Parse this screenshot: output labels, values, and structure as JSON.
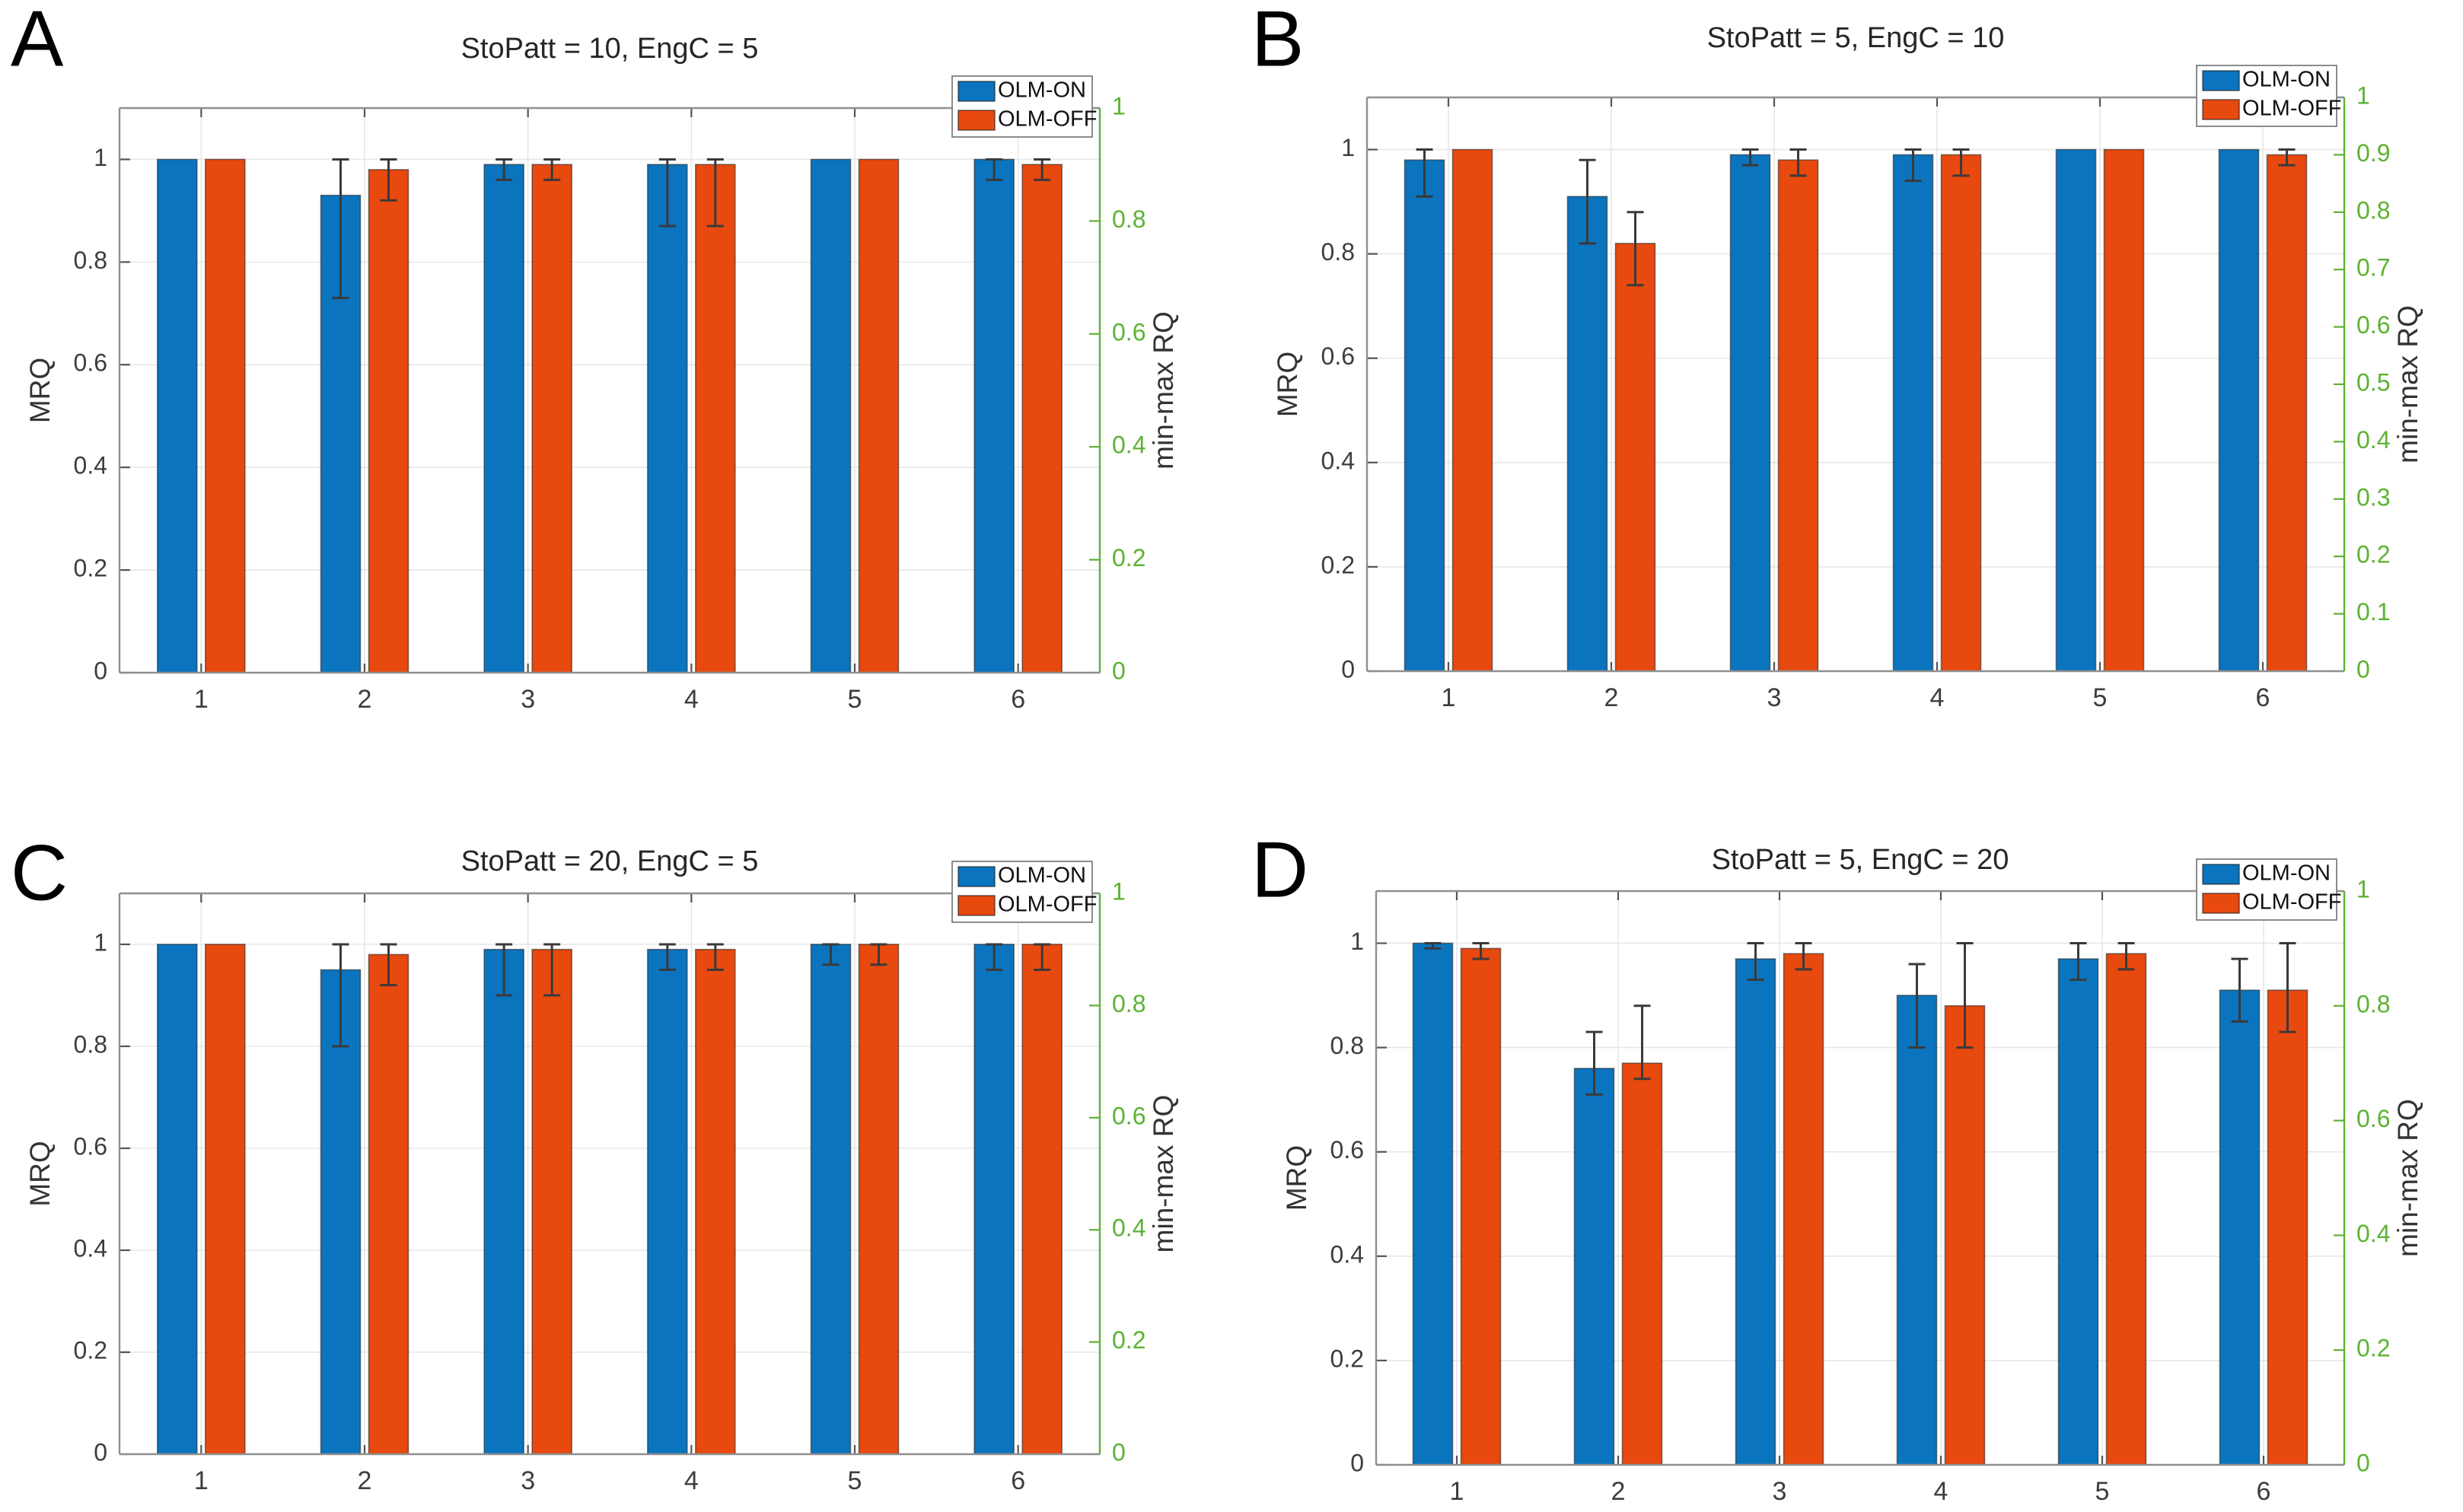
{
  "figure": {
    "background": "#ffffff",
    "colors": {
      "olm_on": "#0b74be",
      "olm_off": "#e8490e",
      "right_axis_green": "#5cb232",
      "grid": "#e7e7e7",
      "spine": "#8f8f8f",
      "error_bar": "#3a3a3a",
      "tick_mark": "#555555"
    },
    "legend": {
      "items": [
        {
          "label": "OLM-ON",
          "color_key": "olm_on"
        },
        {
          "label": "OLM-OFF",
          "color_key": "olm_off"
        }
      ]
    }
  },
  "chart_data": [
    {
      "panel": "A",
      "type": "bar",
      "title": "StoPatt = 10, EngC = 5",
      "xlabel": "",
      "ylabel_left": "MRQ",
      "ylabel_right": "min-max RQ",
      "categories": [
        "1",
        "2",
        "3",
        "4",
        "5",
        "6"
      ],
      "ylim_left": [
        0,
        1.1
      ],
      "ylim_right": [
        0,
        1
      ],
      "yticks_left": [
        0,
        0.2,
        0.4,
        0.6,
        0.8,
        1
      ],
      "yticks_right": [
        0,
        0.2,
        0.4,
        0.6,
        0.8,
        1
      ],
      "grid": true,
      "legend_position": "top-right",
      "series": [
        {
          "name": "OLM-ON",
          "values": [
            1.0,
            0.93,
            0.99,
            0.99,
            1.0,
            1.0
          ],
          "err_lo": [
            null,
            0.73,
            0.96,
            0.87,
            null,
            0.96
          ],
          "err_hi": [
            null,
            1.0,
            1.0,
            1.0,
            null,
            1.0
          ]
        },
        {
          "name": "OLM-OFF",
          "values": [
            1.0,
            0.98,
            0.99,
            0.99,
            1.0,
            0.99
          ],
          "err_lo": [
            null,
            0.92,
            0.96,
            0.87,
            null,
            0.96
          ],
          "err_hi": [
            null,
            1.0,
            1.0,
            1.0,
            null,
            1.0
          ]
        }
      ]
    },
    {
      "panel": "B",
      "type": "bar",
      "title": "StoPatt = 5, EngC = 10",
      "xlabel": "",
      "ylabel_left": "MRQ",
      "ylabel_right": "min-max RQ",
      "categories": [
        "1",
        "2",
        "3",
        "4",
        "5",
        "6"
      ],
      "ylim_left": [
        0,
        1.1
      ],
      "ylim_right": [
        0,
        1
      ],
      "yticks_left": [
        0,
        0.2,
        0.4,
        0.6,
        0.8,
        1
      ],
      "yticks_right": [
        0,
        0.1,
        0.2,
        0.3,
        0.4,
        0.5,
        0.6,
        0.7,
        0.8,
        0.9,
        1
      ],
      "grid": true,
      "legend_position": "top-right",
      "series": [
        {
          "name": "OLM-ON",
          "values": [
            0.98,
            0.91,
            0.99,
            0.99,
            1.0,
            1.0
          ],
          "err_lo": [
            0.91,
            0.82,
            0.97,
            0.94,
            null,
            null
          ],
          "err_hi": [
            1.0,
            0.98,
            1.0,
            1.0,
            null,
            null
          ]
        },
        {
          "name": "OLM-OFF",
          "values": [
            1.0,
            0.82,
            0.98,
            0.99,
            1.0,
            0.99
          ],
          "err_lo": [
            null,
            0.74,
            0.95,
            0.95,
            null,
            0.97
          ],
          "err_hi": [
            null,
            0.88,
            1.0,
            1.0,
            null,
            1.0
          ]
        }
      ]
    },
    {
      "panel": "C",
      "type": "bar",
      "title": "StoPatt = 20, EngC = 5",
      "xlabel": "",
      "ylabel_left": "MRQ",
      "ylabel_right": "min-max RQ",
      "categories": [
        "1",
        "2",
        "3",
        "4",
        "5",
        "6"
      ],
      "ylim_left": [
        0,
        1.1
      ],
      "ylim_right": [
        0,
        1
      ],
      "yticks_left": [
        0,
        0.2,
        0.4,
        0.6,
        0.8,
        1
      ],
      "yticks_right": [
        0,
        0.2,
        0.4,
        0.6,
        0.8,
        1
      ],
      "grid": true,
      "legend_position": "top-right",
      "series": [
        {
          "name": "OLM-ON",
          "values": [
            1.0,
            0.95,
            0.99,
            0.99,
            1.0,
            1.0
          ],
          "err_lo": [
            null,
            0.8,
            0.9,
            0.95,
            0.96,
            0.95
          ],
          "err_hi": [
            null,
            1.0,
            1.0,
            1.0,
            1.0,
            1.0
          ]
        },
        {
          "name": "OLM-OFF",
          "values": [
            1.0,
            0.98,
            0.99,
            0.99,
            1.0,
            1.0
          ],
          "err_lo": [
            null,
            0.92,
            0.9,
            0.95,
            0.96,
            0.95
          ],
          "err_hi": [
            null,
            1.0,
            1.0,
            1.0,
            1.0,
            1.0
          ]
        }
      ]
    },
    {
      "panel": "D",
      "type": "bar",
      "title": "StoPatt = 5, EngC = 20",
      "xlabel": "",
      "ylabel_left": "MRQ",
      "ylabel_right": "min-max RQ",
      "categories": [
        "1",
        "2",
        "3",
        "4",
        "5",
        "6"
      ],
      "ylim_left": [
        0,
        1.1
      ],
      "ylim_right": [
        0,
        1
      ],
      "yticks_left": [
        0,
        0.2,
        0.4,
        0.6,
        0.8,
        1
      ],
      "yticks_right": [
        0,
        0.2,
        0.4,
        0.6,
        0.8,
        1
      ],
      "grid": true,
      "legend_position": "top-right",
      "series": [
        {
          "name": "OLM-ON",
          "values": [
            1.0,
            0.76,
            0.97,
            0.9,
            0.97,
            0.91
          ],
          "err_lo": [
            0.99,
            0.71,
            0.93,
            0.8,
            0.93,
            0.85
          ],
          "err_hi": [
            1.0,
            0.83,
            1.0,
            0.96,
            1.0,
            0.97
          ]
        },
        {
          "name": "OLM-OFF",
          "values": [
            0.99,
            0.77,
            0.98,
            0.88,
            0.98,
            0.91
          ],
          "err_lo": [
            0.97,
            0.74,
            0.95,
            0.8,
            0.95,
            0.83
          ],
          "err_hi": [
            1.0,
            0.88,
            1.0,
            1.0,
            1.0,
            1.0
          ]
        }
      ]
    }
  ]
}
